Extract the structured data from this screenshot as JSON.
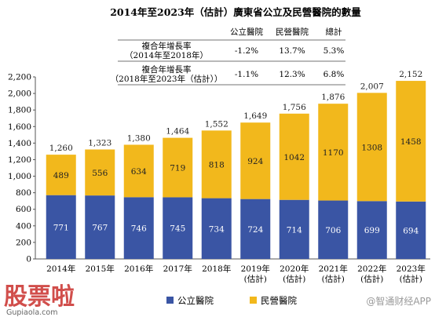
{
  "chart_data": {
    "type": "bar",
    "title": "2014年至2023年（估計）廣東省公立及民營醫院的數量",
    "categories": [
      [
        "2014年"
      ],
      [
        "2015年"
      ],
      [
        "2016年"
      ],
      [
        "2017年"
      ],
      [
        "2018年"
      ],
      [
        "2019年",
        "(估計)"
      ],
      [
        "2020年",
        "(估計)"
      ],
      [
        "2021年",
        "(估計)"
      ],
      [
        "2022年",
        "(估計)"
      ],
      [
        "2023年",
        "(估計)"
      ]
    ],
    "series": [
      {
        "name": "公立醫院",
        "color": "#3a55a4",
        "values": [
          771,
          767,
          746,
          745,
          734,
          724,
          714,
          706,
          699,
          694
        ]
      },
      {
        "name": "民營醫院",
        "color": "#f2b81c",
        "values": [
          489,
          556,
          634,
          719,
          818,
          924,
          1042,
          1170,
          1308,
          1458
        ]
      }
    ],
    "totals": [
      1260,
      1323,
      1380,
      1464,
      1552,
      1649,
      1756,
      1876,
      2007,
      2152
    ],
    "ylim": [
      0,
      2200
    ],
    "yticks": [
      0,
      200,
      400,
      600,
      800,
      1000,
      1200,
      1400,
      1600,
      1800,
      2000,
      2200
    ],
    "stacked": true,
    "cagr_table": {
      "headers": [
        "公立醫院",
        "民營醫院",
        "總計"
      ],
      "rows": [
        {
          "label": [
            "複合年增長率",
            "（2014年至2018年）"
          ],
          "values": [
            "-1.2%",
            "13.7%",
            "5.3%"
          ]
        },
        {
          "label": [
            "複合年增長率",
            "（2018年至2023年（估計））"
          ],
          "values": [
            "-1.1%",
            "12.3%",
            "6.8%"
          ]
        }
      ]
    },
    "legend_position": "bottom"
  },
  "watermark": {
    "logo_text": "股票啦",
    "logo_url": "Gupiaola.com",
    "right_text": "@智通财经APP"
  }
}
